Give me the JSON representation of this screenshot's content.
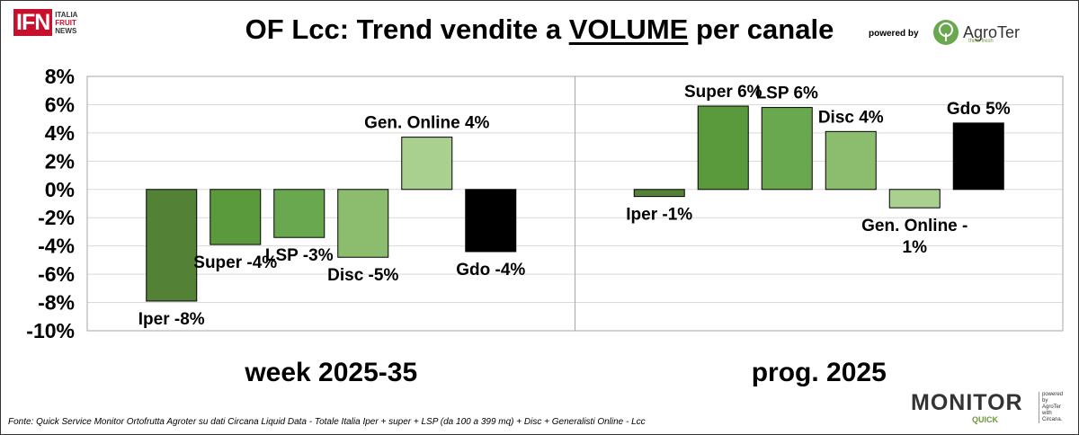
{
  "title": {
    "prefix": "OF Lcc: Trend vendite a ",
    "underlined": "VOLUME",
    "suffix": " per canale"
  },
  "logos": {
    "ifn_mark": "IFN",
    "ifn_line1": "ITALIA",
    "ifn_line2": "FRUIT",
    "ifn_line3": "NEWS",
    "powered_by": "powered by",
    "agroter_name": "AgroTer",
    "agroter_tag": "think fresh",
    "monitor_big": "MONITOR",
    "monitor_quick": "QUICK",
    "monitor_side1": "powered by",
    "monitor_side2": "AgroTer",
    "monitor_side3": "with",
    "monitor_side4": "Circana."
  },
  "footer": "Fonte: Quick Service Monitor Ortofrutta Agroter su dati Circana Liquid Data - Totale Italia Iper + super + LSP (da 100 a 399 mq) + Disc + Generalisti Online - Lcc",
  "chart_data": {
    "type": "bar",
    "ylim": [
      -10,
      8
    ],
    "yticks": [
      8,
      6,
      4,
      2,
      0,
      -2,
      -4,
      -6,
      -8,
      -10
    ],
    "ytick_labels": [
      "8%",
      "6%",
      "4%",
      "2%",
      "0%",
      "-2%",
      "-4%",
      "-6%",
      "-8%",
      "-10%"
    ],
    "grid": true,
    "colors": {
      "Iper": "#538135",
      "Super": "#5b9a3c",
      "LSP": "#6aa84f",
      "Disc": "#8cbc6e",
      "Gen. Online": "#a9d08e",
      "Gdo": "#000000"
    },
    "groups": [
      {
        "name": "week 2025-35",
        "categories": [
          "Iper",
          "Super",
          "LSP",
          "Disc",
          "Gen. Online",
          "Gdo"
        ],
        "values": [
          -7.9,
          -3.9,
          -3.4,
          -4.8,
          3.7,
          -4.4
        ],
        "labels": [
          "Iper -8%",
          "Super -4%",
          "LSP -3%",
          "Disc -5%",
          "Gen. Online 4%",
          "Gdo -4%"
        ]
      },
      {
        "name": "prog. 2025",
        "categories": [
          "Iper",
          "Super",
          "LSP",
          "Disc",
          "Gen. Online",
          "Gdo"
        ],
        "values": [
          -0.5,
          5.9,
          5.8,
          4.1,
          -1.3,
          4.7
        ],
        "labels": [
          "Iper -1%",
          "Super 6%",
          "LSP 6%",
          "Disc 4%",
          "Gen. Online -\n1%",
          "Gdo 5%"
        ]
      }
    ]
  }
}
